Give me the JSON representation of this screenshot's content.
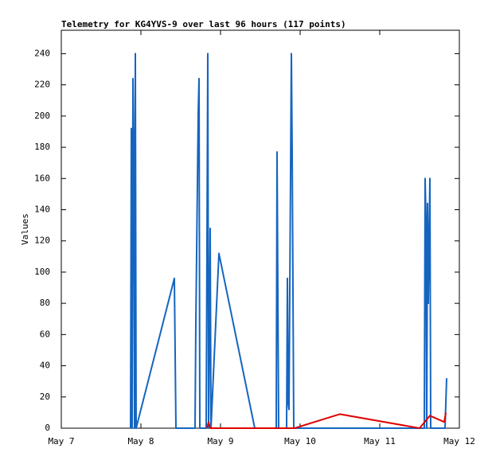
{
  "chart_data": {
    "type": "line",
    "title": "Telemetry for KG4YVS-9 over last 96 hours (117 points)",
    "ylabel": "Values",
    "xlim": [
      7,
      12
    ],
    "xticks": [
      {
        "value": 7,
        "label": "May 7"
      },
      {
        "value": 8,
        "label": "May 8"
      },
      {
        "value": 9,
        "label": "May 9"
      },
      {
        "value": 10,
        "label": "May 10"
      },
      {
        "value": 11,
        "label": "May 11"
      },
      {
        "value": 12,
        "label": "May 12"
      }
    ],
    "ylim": [
      0,
      255
    ],
    "yticks": [
      0,
      20,
      40,
      60,
      80,
      100,
      120,
      140,
      160,
      180,
      200,
      220,
      240
    ],
    "grid": false,
    "series": [
      {
        "color": "#1565c0",
        "x": [
          7.87,
          7.88,
          7.89,
          7.9,
          7.91,
          7.92,
          7.93,
          7.94,
          8.42,
          8.43,
          8.44,
          8.68,
          8.69,
          8.7,
          8.71,
          8.72,
          8.73,
          8.74,
          8.82,
          8.83,
          8.84,
          8.85,
          8.87,
          8.88,
          8.98,
          9.43,
          9.7,
          9.71,
          9.72,
          9.73,
          9.83,
          9.84,
          9.85,
          9.86,
          9.89,
          9.9,
          9.91,
          9.92,
          11.56,
          11.57,
          11.58,
          11.59,
          11.6,
          11.61,
          11.63,
          11.64,
          11.82,
          11.83,
          11.84
        ],
        "values": [
          0,
          192,
          0,
          224,
          180,
          0,
          240,
          0,
          96,
          48,
          0,
          0,
          68,
          112,
          158,
          202,
          224,
          0,
          0,
          120,
          240,
          0,
          128,
          0,
          112,
          0,
          0,
          177,
          88,
          0,
          0,
          96,
          16,
          12,
          240,
          176,
          88,
          0,
          0,
          160,
          134,
          0,
          144,
          80,
          160,
          0,
          0,
          16,
          32
        ]
      },
      {
        "color": "#e00000",
        "x": [
          8.83,
          8.85,
          8.87,
          9.93,
          10.5,
          11.5,
          11.63,
          11.81,
          11.83
        ],
        "values": [
          0,
          4,
          0,
          0,
          9,
          0,
          8,
          4,
          10
        ]
      }
    ]
  }
}
